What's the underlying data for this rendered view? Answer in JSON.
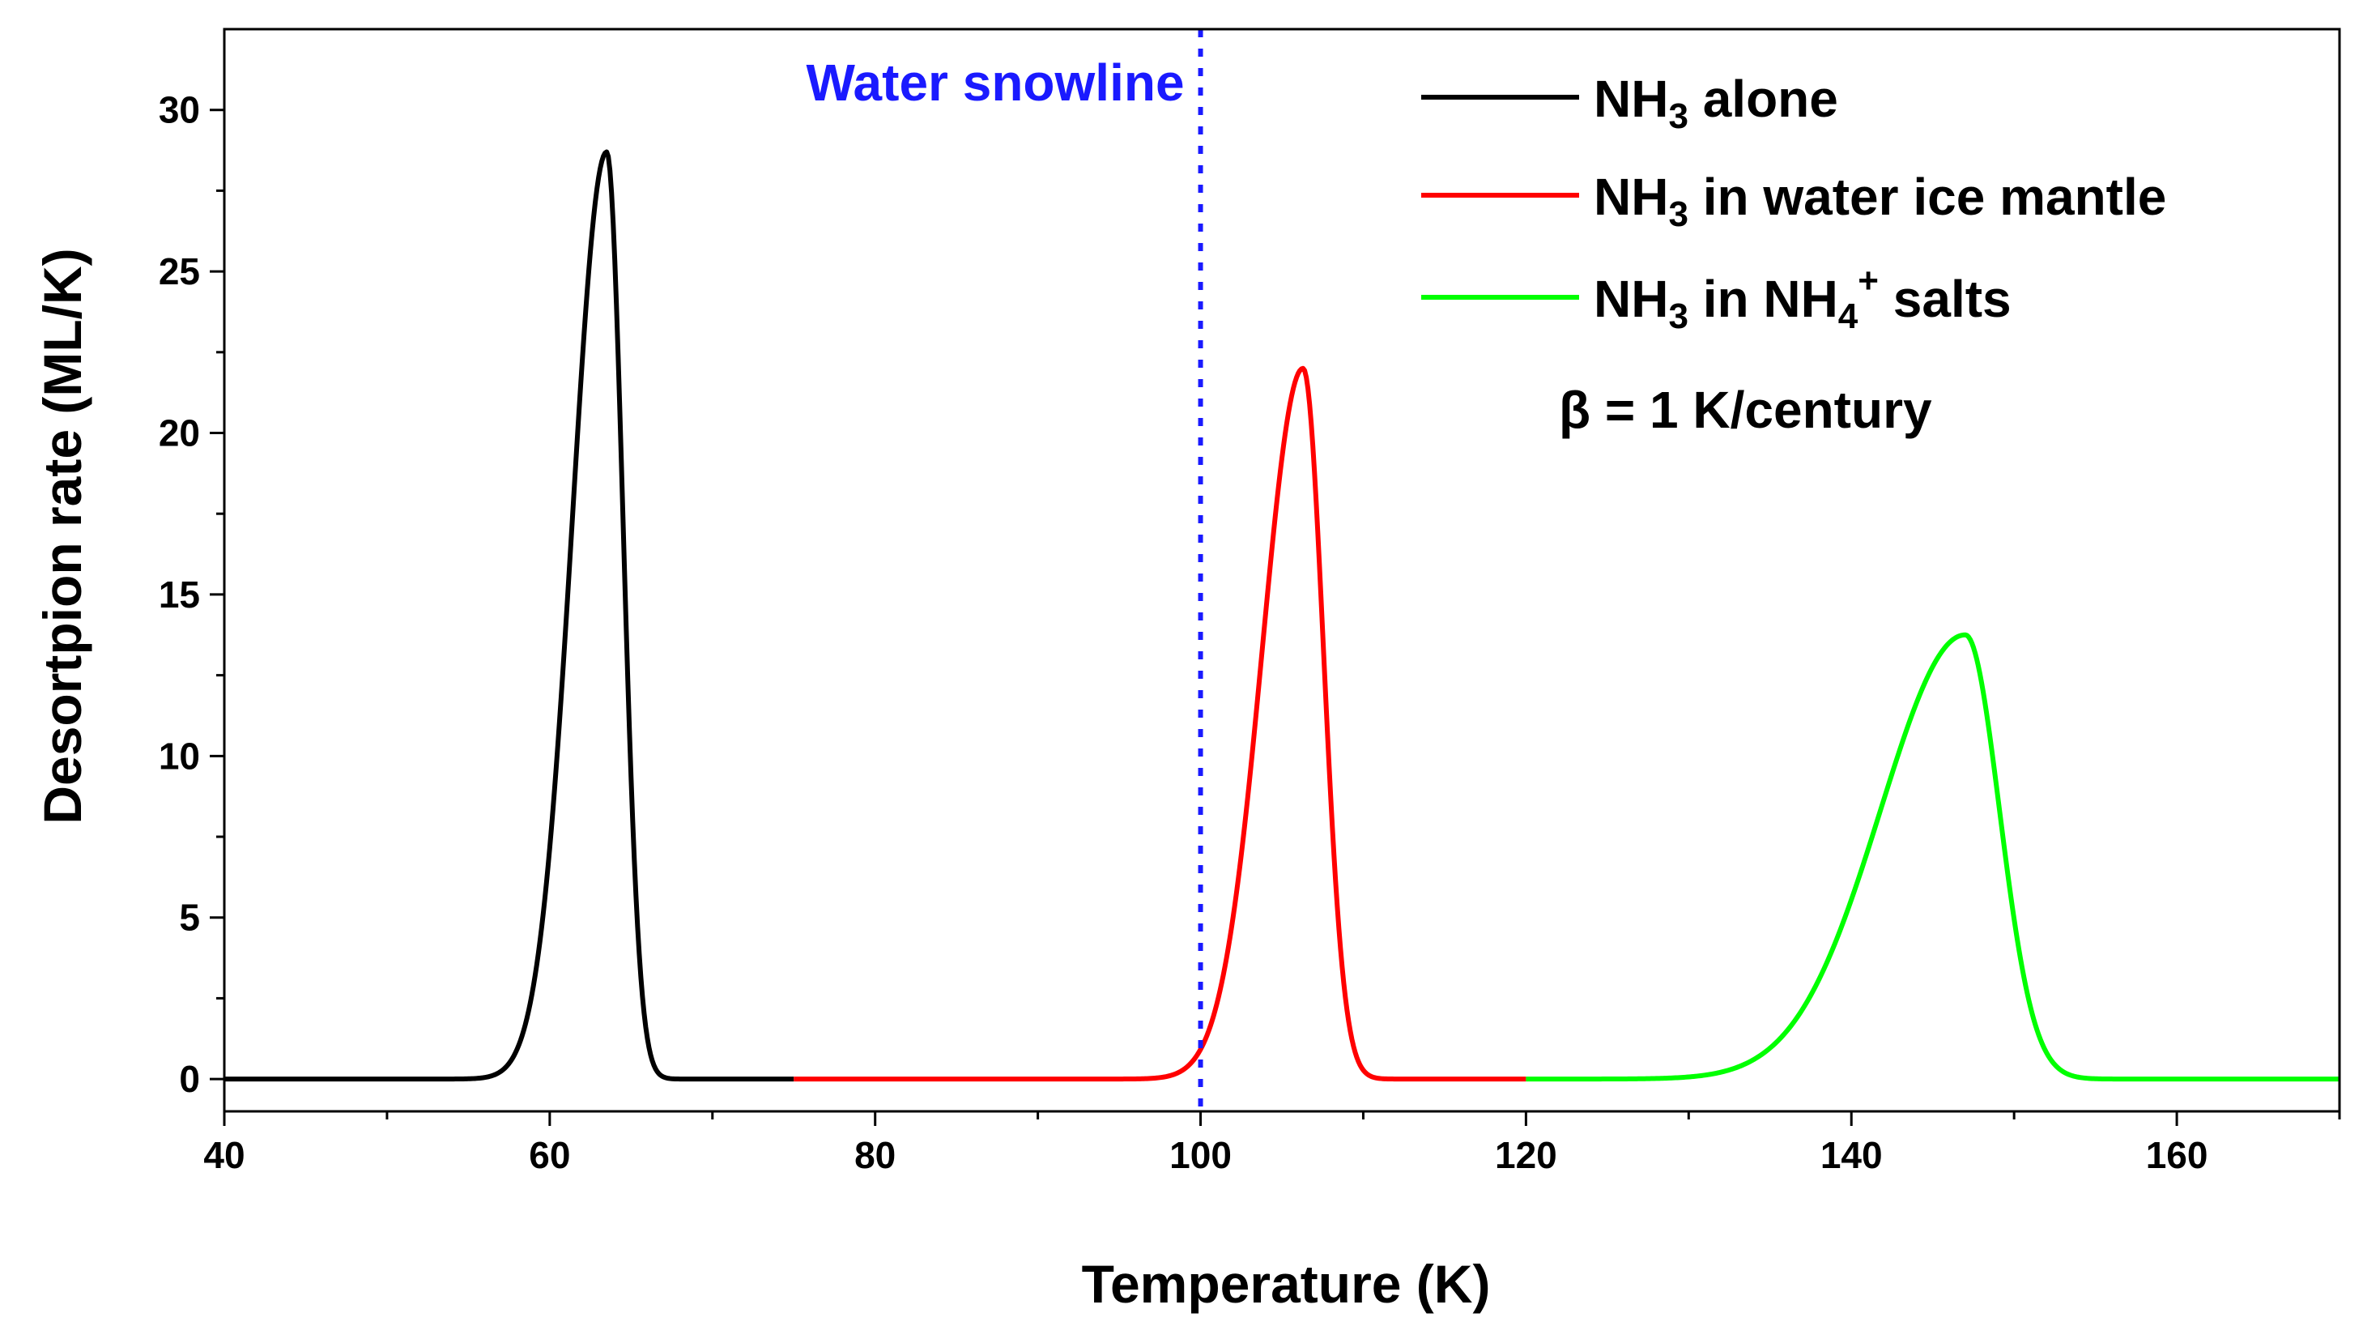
{
  "chart_data": {
    "type": "line",
    "title": "",
    "xlabel": "Temperature (K)",
    "ylabel": "Desortpion rate (ML/K)",
    "xlim": [
      40,
      170
    ],
    "ylim": [
      -1,
      32.5
    ],
    "x_ticks": [
      40,
      60,
      80,
      100,
      120,
      140,
      160
    ],
    "x_tick_labels": [
      "40",
      "60",
      "80",
      "100",
      "120",
      "140",
      "160"
    ],
    "y_ticks": [
      0,
      5,
      10,
      15,
      20,
      25,
      30
    ],
    "y_tick_labels": [
      "0",
      "5",
      "10",
      "15",
      "20",
      "25",
      "30"
    ],
    "grid": false,
    "legend_position": "top-right",
    "series": [
      {
        "name": "NH3 alone",
        "legend_base": "NH",
        "legend_sub": "3",
        "legend_rest": " alone",
        "color": "#000000",
        "x_range": [
          40,
          75
        ],
        "peak_x": 63.5,
        "peak_y": 28.7
      },
      {
        "name": "NH3 in water ice mantle",
        "legend_base": "NH",
        "legend_sub": "3",
        "legend_rest": " in water ice mantle",
        "color": "#ff0000",
        "x_range": [
          75,
          120
        ],
        "peak_x": 106.3,
        "peak_y": 22.0
      },
      {
        "name": "NH3 in NH4+ salts",
        "legend_base": "NH",
        "legend_sub": "3",
        "legend_mid": " in NH",
        "legend_sub2": "4",
        "legend_sup2": "+",
        "legend_rest": " salts",
        "color": "#00ff00",
        "x_range": [
          120,
          170
        ],
        "peak_x": 147.0,
        "peak_y": 13.75
      }
    ],
    "annotations": [
      {
        "text": "Water snowline",
        "x": 100,
        "color": "#1a1aff",
        "style": "dotted vertical line"
      },
      {
        "text": "β = 1 K/century"
      }
    ]
  }
}
